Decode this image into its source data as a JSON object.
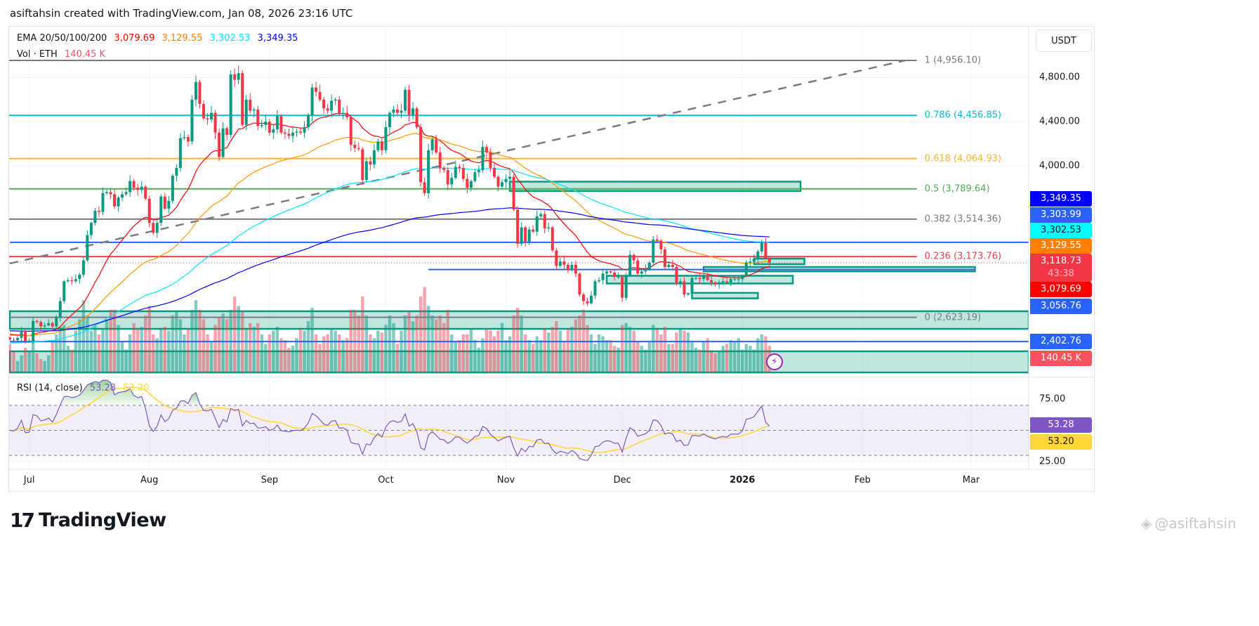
{
  "header": {
    "title": "asiftahsin created with TradingView.com, Jan 08, 2026 23:16 UTC"
  },
  "legend": {
    "ema_label": "EMA 20/50/100/200",
    "ema_values": [
      "3,079.69",
      "3,129.55",
      "3,302.53",
      "3,349.35"
    ],
    "vol_label": "Vol · ETH",
    "vol_value": "140.45 K",
    "rsi_label": "RSI (14, close)",
    "rsi_value": "53.28",
    "rsi_ma_value": "53.20"
  },
  "price_axis": {
    "currency": "USDT",
    "ticks": [
      "4,800.00",
      "4,400.00",
      "4,000.00"
    ],
    "labels": [
      {
        "text": "3,349.35",
        "bg": "#0000ff",
        "fg": "#ffffff"
      },
      {
        "text": "3,303.99",
        "bg": "#2962ff",
        "fg": "#ffffff"
      },
      {
        "text": "3,302.53",
        "bg": "#00ffff",
        "fg": "#131722"
      },
      {
        "text": "3,129.55",
        "bg": "#ff8000",
        "fg": "#ffffff"
      },
      {
        "text": "3,118.73",
        "sub": "43:38",
        "bg": "#f23645",
        "fg": "#ffffff"
      },
      {
        "text": "3,079.69",
        "bg": "#ff0000",
        "fg": "#ffffff"
      },
      {
        "text": "3,056.76",
        "bg": "#2962ff",
        "fg": "#ffffff"
      },
      {
        "text": "2,402.76",
        "bg": "#2962ff",
        "fg": "#ffffff"
      },
      {
        "text": "140.45 K",
        "bg": "#f7525f",
        "fg": "#ffffff"
      }
    ]
  },
  "rsi_axis": {
    "ticks": [
      "75.00",
      "25.00"
    ],
    "labels": [
      {
        "text": "53.28",
        "bg": "#7e57c2",
        "fg": "#ffffff"
      },
      {
        "text": "53.20",
        "bg": "#fdd835",
        "fg": "#131722"
      }
    ]
  },
  "time_axis": {
    "labels": [
      "Jul",
      "Aug",
      "Sep",
      "Oct",
      "Nov",
      "Dec",
      "2026",
      "Feb",
      "Mar"
    ]
  },
  "footer": {
    "logo_text": "TradingView",
    "watermark": "@asiftahsin"
  },
  "colors": {
    "up": "#089981",
    "down": "#f23645",
    "ema20": "#ff0000",
    "ema50": "#ff9800",
    "ema100": "#00e5ff",
    "ema200": "#0000ff",
    "rsi": "#7e57c2",
    "rsi_ma": "#fdd835",
    "zone": "#089981",
    "hline": "#2962ff"
  },
  "chart_data": {
    "type": "candlestick",
    "symbol_info": "ETH / USDT, daily",
    "start_date": "2025-06-26",
    "end_date": "2026-01-08",
    "y_scale": "linear",
    "y_ticks": [
      4800,
      4400,
      4000
    ],
    "x_ticks": [
      "2025-07-01",
      "2025-08-01",
      "2025-09-01",
      "2025-10-01",
      "2025-11-01",
      "2025-12-01",
      "2026-01-01",
      "2026-02-01",
      "2026-03-01"
    ],
    "first_open": 2440,
    "close": [
      2420,
      2415,
      2435,
      2500,
      2405,
      2410,
      2590,
      2580,
      2540,
      2550,
      2570,
      2540,
      2620,
      2770,
      2950,
      2960,
      2950,
      2970,
      3010,
      3140,
      3370,
      3480,
      3590,
      3580,
      3750,
      3760,
      3740,
      3630,
      3710,
      3740,
      3760,
      3860,
      3800,
      3780,
      3810,
      3700,
      3480,
      3390,
      3480,
      3720,
      3610,
      3680,
      3910,
      3980,
      4250,
      4260,
      4220,
      4600,
      4760,
      4560,
      4430,
      4420,
      4480,
      4300,
      4080,
      4340,
      4280,
      4830,
      4780,
      4840,
      4370,
      4600,
      4500,
      4510,
      4360,
      4370,
      4400,
      4300,
      4330,
      4450,
      4300,
      4290,
      4270,
      4300,
      4310,
      4300,
      4350,
      4460,
      4710,
      4670,
      4600,
      4520,
      4500,
      4590,
      4600,
      4470,
      4480,
      4440,
      4190,
      4160,
      4150,
      3870,
      4040,
      4010,
      4140,
      4220,
      4140,
      4350,
      4480,
      4510,
      4480,
      4500,
      4690,
      4460,
      4520,
      4350,
      3850,
      3750,
      4140,
      4240,
      4120,
      3980,
      3960,
      3830,
      3890,
      3990,
      3980,
      3880,
      3800,
      3860,
      3940,
      3960,
      4170,
      4120,
      3980,
      3900,
      3810,
      3850,
      3880,
      3900,
      3600,
      3290,
      3440,
      3310,
      3420,
      3400,
      3540,
      3560,
      3430,
      3440,
      3230,
      3090,
      3130,
      3100,
      3050,
      3100,
      3020,
      2830,
      2770,
      2750,
      2820,
      2950,
      2960,
      3020,
      3040,
      3030,
      2990,
      2990,
      2800,
      3000,
      3190,
      3140,
      3020,
      3040,
      3060,
      3120,
      3330,
      3320,
      3240,
      3080,
      3100,
      3080,
      2930,
      2950,
      2830,
      2840,
      2980,
      2980,
      2970,
      3000,
      2960,
      2940,
      2920,
      2940,
      2950,
      2940,
      2970,
      2970,
      2970,
      3000,
      3120,
      3130,
      3150,
      3220,
      3300,
      3160,
      3118.73
    ],
    "volume_k": [
      150,
      110,
      60,
      90,
      130,
      110,
      170,
      100,
      70,
      60,
      90,
      160,
      200,
      240,
      250,
      140,
      120,
      220,
      280,
      380,
      300,
      220,
      250,
      200,
      230,
      280,
      330,
      330,
      250,
      160,
      120,
      200,
      260,
      230,
      240,
      300,
      350,
      200,
      180,
      230,
      240,
      220,
      300,
      320,
      280,
      200,
      230,
      330,
      380,
      330,
      280,
      200,
      160,
      250,
      290,
      310,
      280,
      330,
      400,
      350,
      320,
      230,
      260,
      240,
      260,
      200,
      150,
      200,
      220,
      240,
      180,
      170,
      130,
      140,
      180,
      230,
      220,
      270,
      340,
      200,
      150,
      190,
      200,
      230,
      220,
      200,
      170,
      180,
      330,
      330,
      300,
      400,
      300,
      200,
      180,
      220,
      210,
      250,
      300,
      260,
      150,
      220,
      300,
      320,
      270,
      300,
      400,
      450,
      350,
      300,
      280,
      300,
      260,
      330,
      200,
      160,
      170,
      200,
      200,
      230,
      170,
      130,
      180,
      230,
      220,
      190,
      220,
      260,
      170,
      190,
      300,
      340,
      300,
      200,
      170,
      150,
      190,
      170,
      230,
      210,
      240,
      270,
      220,
      160,
      230,
      240,
      280,
      300,
      330,
      250,
      200,
      150,
      200,
      190,
      170,
      170,
      140,
      130,
      250,
      260,
      240,
      220,
      160,
      140,
      120,
      160,
      250,
      230,
      200,
      240,
      150,
      150,
      210,
      230,
      220,
      210,
      160,
      130,
      120,
      160,
      180,
      110,
      100,
      110,
      140,
      150,
      170,
      160,
      180,
      120,
      150,
      140,
      120,
      180,
      200,
      190,
      140.45
    ],
    "ema_periods": [
      20,
      50,
      100,
      200
    ],
    "ema_initial": [
      2470,
      2460,
      2390,
      2500
    ],
    "ema_last": [
      3079.69,
      3129.55,
      3302.53,
      3349.35
    ],
    "last_price": 3118.73,
    "rsi": {
      "period": 14,
      "ma_period": 14,
      "last": 53.28,
      "ma_last": 53.2,
      "upper": 70,
      "middle": 50,
      "lower": 30,
      "ticks": [
        75,
        25
      ]
    },
    "fib_levels": [
      {
        "ratio": "1",
        "price": 4956.1,
        "color": "#787b86"
      },
      {
        "ratio": "0.786",
        "price": 4456.85,
        "color": "#00bcd4"
      },
      {
        "ratio": "0.618",
        "price": 4064.93,
        "color": "#f7b52b"
      },
      {
        "ratio": "0.5",
        "price": 3789.64,
        "color": "#4caf50"
      },
      {
        "ratio": "0.382",
        "price": 3514.36,
        "color": "#787b86"
      },
      {
        "ratio": "0.236",
        "price": 3173.76,
        "color": "#f23645"
      },
      {
        "ratio": "0",
        "price": 2623.19,
        "color": "#787b86"
      }
    ],
    "fib_end_date": "2026-02-15",
    "horizontal_lines": [
      {
        "price": 3303.99,
        "from": "2025-06-26",
        "to": "right"
      },
      {
        "price": 3056.76,
        "from": "2025-10-12",
        "to": "2026-03-02"
      },
      {
        "price": 2402.76,
        "from": "2025-06-26",
        "to": "right"
      }
    ],
    "zones": [
      {
        "top": 2678,
        "bottom": 2518,
        "from": "2025-06-26",
        "to": "right"
      },
      {
        "top": 2314,
        "bottom": 2122,
        "from": "2025-06-26",
        "to": "right"
      },
      {
        "top": 3855,
        "bottom": 3770,
        "from": "2025-11-02",
        "to": "2026-01-16"
      },
      {
        "top": 3080,
        "bottom": 3040,
        "from": "2025-12-22",
        "to": "2026-03-02"
      },
      {
        "top": 3000,
        "bottom": 2930,
        "from": "2025-11-27",
        "to": "2026-01-14"
      },
      {
        "top": 2845,
        "bottom": 2795,
        "from": "2025-12-19",
        "to": "2026-01-05"
      },
      {
        "top": 3156,
        "bottom": 3105,
        "from": "2026-01-04",
        "to": "2026-01-17"
      }
    ],
    "trend_line": {
      "from": {
        "date": "2025-06-26",
        "price": 3112
      },
      "to": {
        "date": "2026-02-12",
        "price": 4956
      },
      "style": "dashed"
    }
  }
}
